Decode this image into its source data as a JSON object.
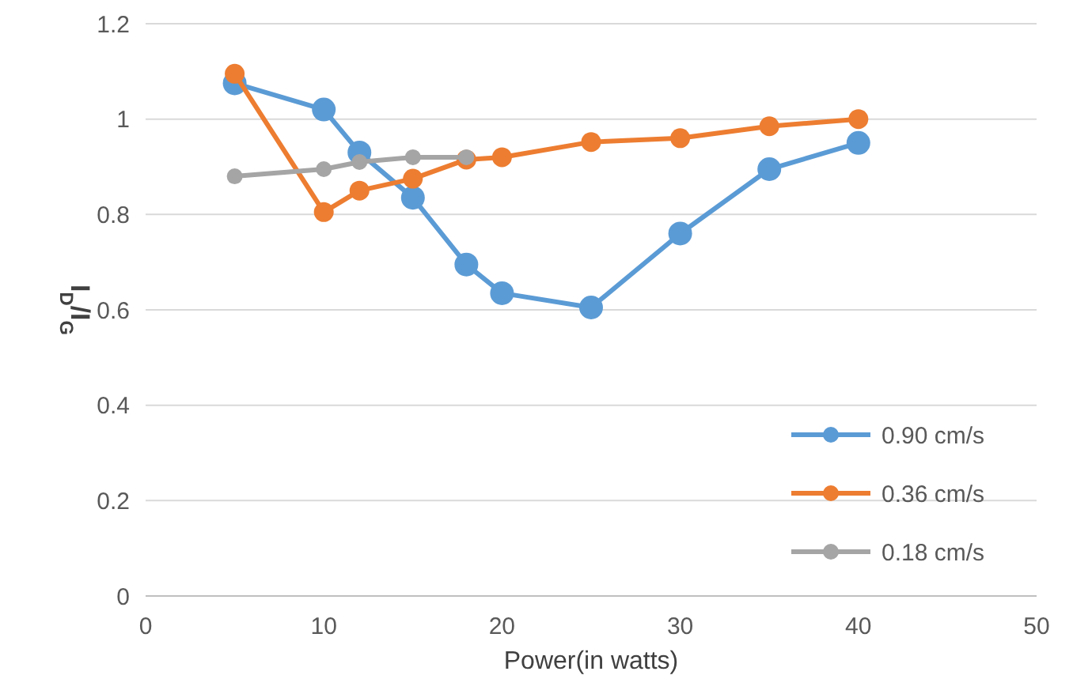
{
  "chart_data": {
    "type": "line",
    "xlabel": "Power(in watts)",
    "ylabel": "I$_{D}$/I$_{G}$",
    "xlim": [
      0,
      50
    ],
    "xticks": [
      0,
      10,
      20,
      30,
      40,
      50
    ],
    "ylim": [
      0,
      1.2
    ],
    "yticks": [
      0,
      0.2,
      0.4,
      0.6,
      0.8,
      1,
      1.2
    ],
    "grid": "y",
    "legend": "bottom right",
    "marker": "circle",
    "line_style": "solid",
    "series": [
      {
        "name": "0.90 cm/s",
        "color": "#5b9bd5",
        "x": [
          5,
          10,
          12,
          15,
          18,
          20,
          25,
          30,
          35,
          40
        ],
        "values": [
          1.075,
          1.02,
          0.93,
          0.835,
          0.695,
          0.635,
          0.605,
          0.76,
          0.895,
          0.95
        ]
      },
      {
        "name": "0.36 cm/s",
        "color": "#ed7d31",
        "x": [
          5,
          10,
          12,
          15,
          18,
          20,
          25,
          30,
          35,
          40
        ],
        "values": [
          1.095,
          0.805,
          0.85,
          0.875,
          0.915,
          0.92,
          0.952,
          0.96,
          0.985,
          1.0
        ]
      },
      {
        "name": "0.18 cm/s",
        "color": "#a5a5a5",
        "x": [
          5,
          10,
          12,
          15,
          18
        ],
        "values": [
          0.88,
          0.895,
          0.91,
          0.92,
          0.92
        ]
      }
    ]
  }
}
